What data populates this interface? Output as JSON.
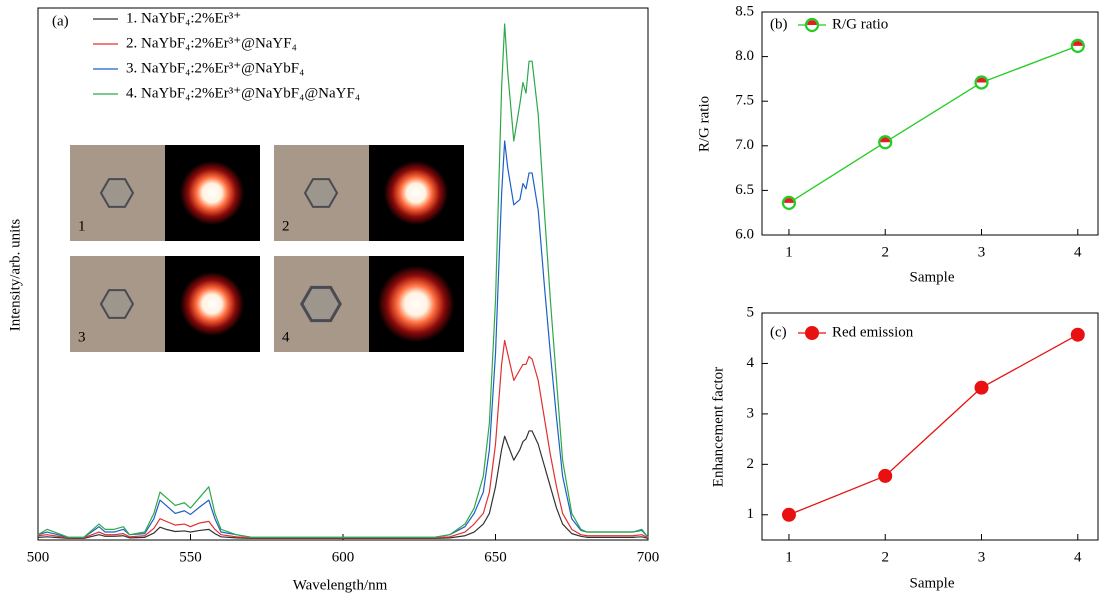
{
  "chart_data": [
    {
      "type": "line",
      "panel_label": "(a)",
      "xlabel": "Wavelength/nm",
      "ylabel": "Intensity/arb. units",
      "insets": [
        "1",
        "2",
        "3",
        "4"
      ],
      "x": [
        500,
        503,
        510,
        515,
        520,
        522,
        525,
        528,
        530,
        535,
        538,
        540,
        542,
        545,
        548,
        550,
        553,
        556,
        558,
        560,
        565,
        570,
        580,
        590,
        600,
        610,
        620,
        630,
        635,
        640,
        643,
        646,
        648,
        650,
        652,
        653,
        654,
        656,
        658,
        659,
        660,
        661,
        662,
        664,
        666,
        668,
        670,
        672,
        675,
        678,
        680,
        685,
        690,
        695,
        698,
        700
      ],
      "xlim": [
        500,
        700
      ],
      "xticks": [
        500,
        550,
        600,
        650,
        700
      ],
      "ylim": [
        0,
        100
      ],
      "series": [
        {
          "name": "1. NaYbF₄:2%Er³⁺",
          "color": "#333333",
          "values": [
            0.5,
            0.6,
            0.3,
            0.3,
            1,
            0.7,
            0.7,
            0.8,
            0.4,
            0.5,
            1.3,
            2.4,
            2,
            1.6,
            1.7,
            1.5,
            1.8,
            2,
            1.2,
            0.6,
            0.4,
            0.3,
            0.3,
            0.3,
            0.3,
            0.3,
            0.3,
            0.3,
            0.4,
            0.8,
            1.5,
            3,
            5,
            10,
            17,
            19.5,
            18,
            15,
            17,
            18.5,
            19,
            20.5,
            20.5,
            18,
            14,
            10,
            6,
            3,
            1.2,
            0.7,
            0.5,
            0.5,
            0.5,
            0.5,
            0.6,
            0.3
          ]
        },
        {
          "name": "2. NaYbF₄:2%Er³⁺@NaYF₄",
          "color": "#e03030",
          "values": [
            0.8,
            1,
            0.4,
            0.4,
            1.5,
            1,
            1,
            1.2,
            0.6,
            0.8,
            2.2,
            4,
            3.5,
            2.8,
            3,
            2.5,
            3.2,
            3.5,
            2,
            1,
            0.6,
            0.4,
            0.4,
            0.4,
            0.4,
            0.4,
            0.4,
            0.4,
            0.6,
            1.5,
            3,
            5,
            9,
            18,
            33,
            37.5,
            35,
            30,
            32,
            33,
            33,
            34.5,
            34,
            30,
            23,
            16,
            10,
            5,
            2,
            1,
            0.8,
            0.8,
            0.8,
            0.8,
            1,
            0.4
          ]
        },
        {
          "name": "3. NaYbF₄:2%Er³⁺@NaYbF₄",
          "color": "#1f5fc8",
          "values": [
            1,
            1.5,
            0.5,
            0.5,
            2.5,
            1.5,
            1.5,
            2,
            1,
            1.2,
            4,
            7.5,
            6.5,
            5,
            5.5,
            4.8,
            6.2,
            7.5,
            4,
            1.5,
            1,
            0.5,
            0.5,
            0.5,
            0.5,
            0.5,
            0.5,
            0.5,
            1,
            2.5,
            5,
            9,
            17,
            35,
            65,
            75,
            70,
            63,
            64,
            67,
            66,
            69,
            69,
            62,
            48,
            35,
            23,
            12,
            4,
            1.8,
            1.5,
            1.5,
            1.5,
            1.5,
            1.8,
            0.5
          ]
        },
        {
          "name": "4. NaYbF₄:2%Er³⁺@NaYbF₄@NaYF₄",
          "color": "#2ea84a",
          "values": [
            1,
            2,
            0.5,
            0.5,
            3,
            2,
            2,
            2.5,
            1,
            1.5,
            5,
            9,
            8,
            6.5,
            7,
            6,
            8,
            10,
            5,
            2,
            1,
            0.5,
            0.5,
            0.5,
            0.5,
            0.5,
            0.5,
            0.5,
            1,
            3,
            6,
            12,
            22,
            45,
            85,
            97,
            88,
            75,
            82,
            86,
            84,
            90,
            90,
            80,
            62,
            45,
            30,
            15,
            5,
            2,
            1.5,
            1.5,
            1.5,
            1.5,
            2,
            0.5
          ]
        }
      ]
    },
    {
      "type": "line",
      "panel_label": "(b)",
      "xlabel": "Sample",
      "ylabel": "R/G ratio",
      "x": [
        1,
        2,
        3,
        4
      ],
      "xlim": [
        0.72,
        4.21
      ],
      "xticks": [
        1,
        2,
        3,
        4
      ],
      "ylim": [
        6,
        8.5
      ],
      "yticks": [
        {
          "value": 6,
          "label": "6.0"
        },
        {
          "value": 6.5,
          "label": "6.5"
        },
        {
          "value": 7,
          "label": "7.0"
        },
        {
          "value": 7.5,
          "label": "7.5"
        },
        {
          "value": 8,
          "label": "8.0"
        },
        {
          "value": 8.5,
          "label": "8.5"
        }
      ],
      "series": [
        {
          "name": "R/G ratio",
          "color": "#22cc22",
          "marker_color": "#e02020",
          "values": [
            6.36,
            7.04,
            7.71,
            8.12
          ]
        }
      ]
    },
    {
      "type": "line",
      "panel_label": "(c)",
      "xlabel": "Sample",
      "ylabel": "Enhancement factor",
      "x": [
        1,
        2,
        3,
        4
      ],
      "xlim": [
        0.72,
        4.21
      ],
      "xticks": [
        1,
        2,
        3,
        4
      ],
      "ylim": [
        0.5,
        5
      ],
      "yticks": [
        1,
        2,
        3,
        4,
        5
      ],
      "series": [
        {
          "name": "Red emission",
          "color": "#e81010",
          "marker_color": "#e81010",
          "values": [
            1,
            1.77,
            3.52,
            4.57
          ]
        }
      ]
    }
  ]
}
